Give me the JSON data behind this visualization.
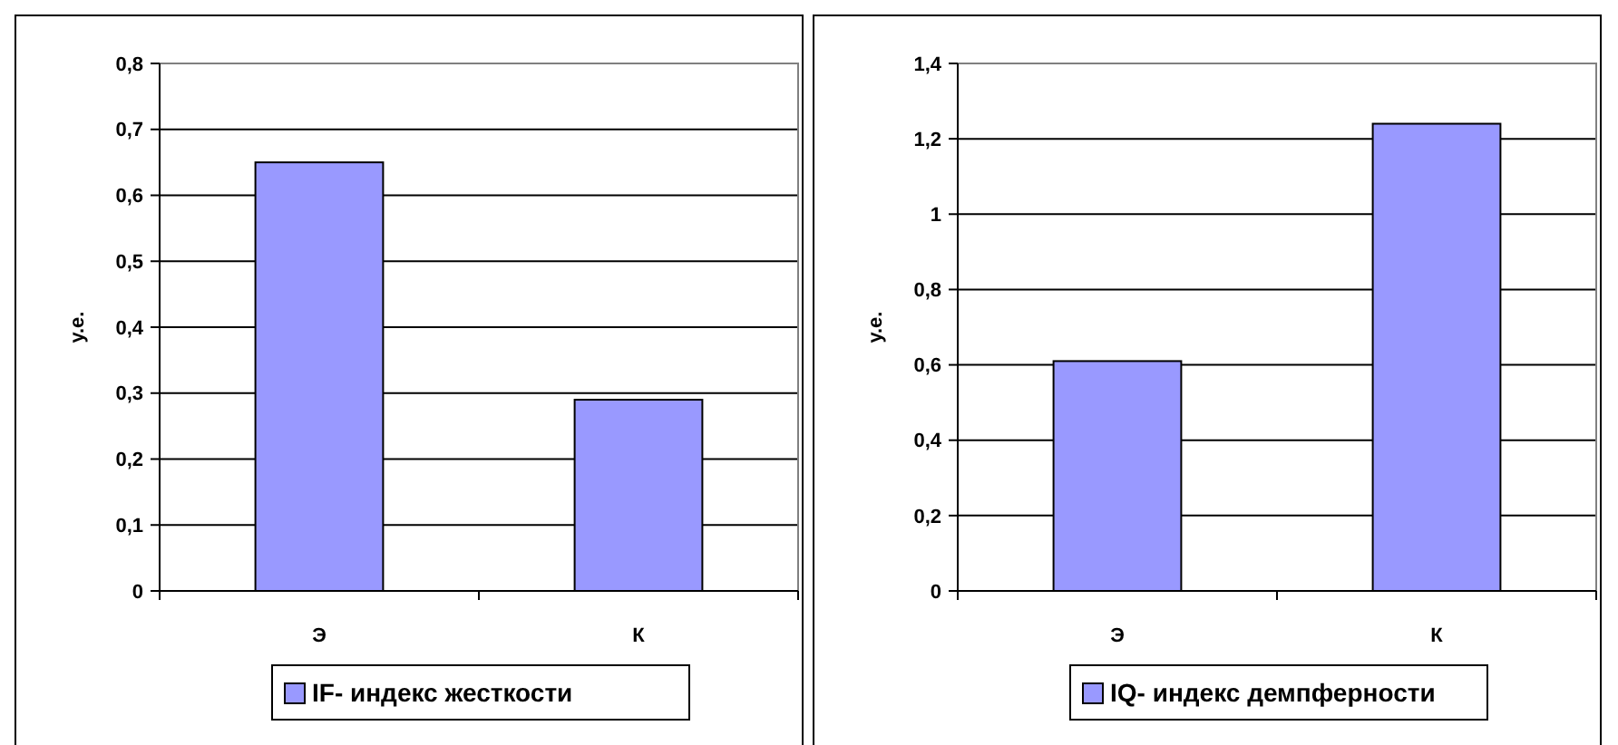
{
  "chart_data": [
    {
      "type": "bar",
      "ylabel": "у.е.",
      "categories": [
        "Э",
        "К"
      ],
      "series": [
        {
          "name": "IF- индекс жесткости",
          "color": "#9999ff",
          "values": [
            0.65,
            0.29
          ]
        }
      ],
      "ylim": [
        0,
        0.8
      ],
      "yticks": [
        {
          "value": 0,
          "label": "0"
        },
        {
          "value": 0.1,
          "label": "0,1"
        },
        {
          "value": 0.2,
          "label": "0,2"
        },
        {
          "value": 0.3,
          "label": "0,3"
        },
        {
          "value": 0.4,
          "label": "0,4"
        },
        {
          "value": 0.5,
          "label": "0,5"
        },
        {
          "value": 0.6,
          "label": "0,6"
        },
        {
          "value": 0.7,
          "label": "0,7"
        },
        {
          "value": 0.8,
          "label": "0,8"
        }
      ],
      "grid": "y",
      "legend": "bottom"
    },
    {
      "type": "bar",
      "ylabel": "у.е.",
      "categories": [
        "Э",
        "К"
      ],
      "series": [
        {
          "name": "IQ- индекс демпферности",
          "color": "#9999ff",
          "values": [
            0.61,
            1.24
          ]
        }
      ],
      "ylim": [
        0,
        1.4
      ],
      "yticks": [
        {
          "value": 0,
          "label": "0"
        },
        {
          "value": 0.2,
          "label": "0,2"
        },
        {
          "value": 0.4,
          "label": "0,4"
        },
        {
          "value": 0.6,
          "label": "0,6"
        },
        {
          "value": 0.8,
          "label": "0,8"
        },
        {
          "value": 1,
          "label": "1"
        },
        {
          "value": 1.2,
          "label": "1,2"
        },
        {
          "value": 1.4,
          "label": "1,4"
        }
      ],
      "grid": "y",
      "legend": "bottom"
    }
  ]
}
